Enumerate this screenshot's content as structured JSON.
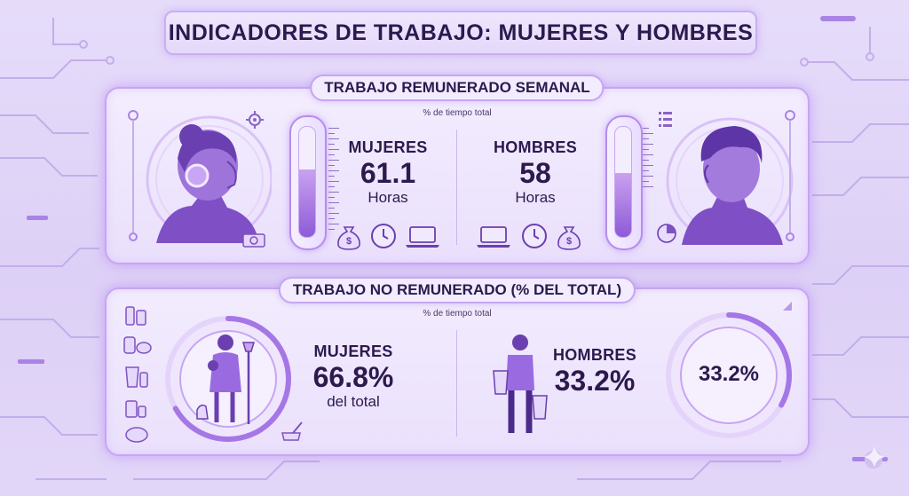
{
  "header": {
    "title": "INDICADORES DE TRABAJO: MUJERES Y HOMBRES"
  },
  "paid_section": {
    "title": "TRABAJO REMUNERADO SEMANAL",
    "subtitle": "% de tiempo total",
    "women": {
      "label": "MUJERES",
      "value": "61.1",
      "unit": "Horas",
      "gauge_level": 0.61
    },
    "men": {
      "label": "HOMBRES",
      "value": "58",
      "unit": "Horas",
      "gauge_level": 0.58
    }
  },
  "unpaid_section": {
    "title": "TRABAJO NO REMUNERADO (% DEL TOTAL)",
    "subtitle": "% de tiempo total",
    "women": {
      "label": "MUJERES",
      "value": "66.8%",
      "unit": "del total",
      "ring_level": 0.668
    },
    "men": {
      "label": "HOMBRES",
      "value": "33.2%",
      "ring_text": "33.2%",
      "ring_level": 0.332
    }
  },
  "colors": {
    "accent": "#8e5ad8",
    "panel_border": "#c6a6f2",
    "background": "#e2d6f8",
    "text": "#2c1a4e"
  }
}
